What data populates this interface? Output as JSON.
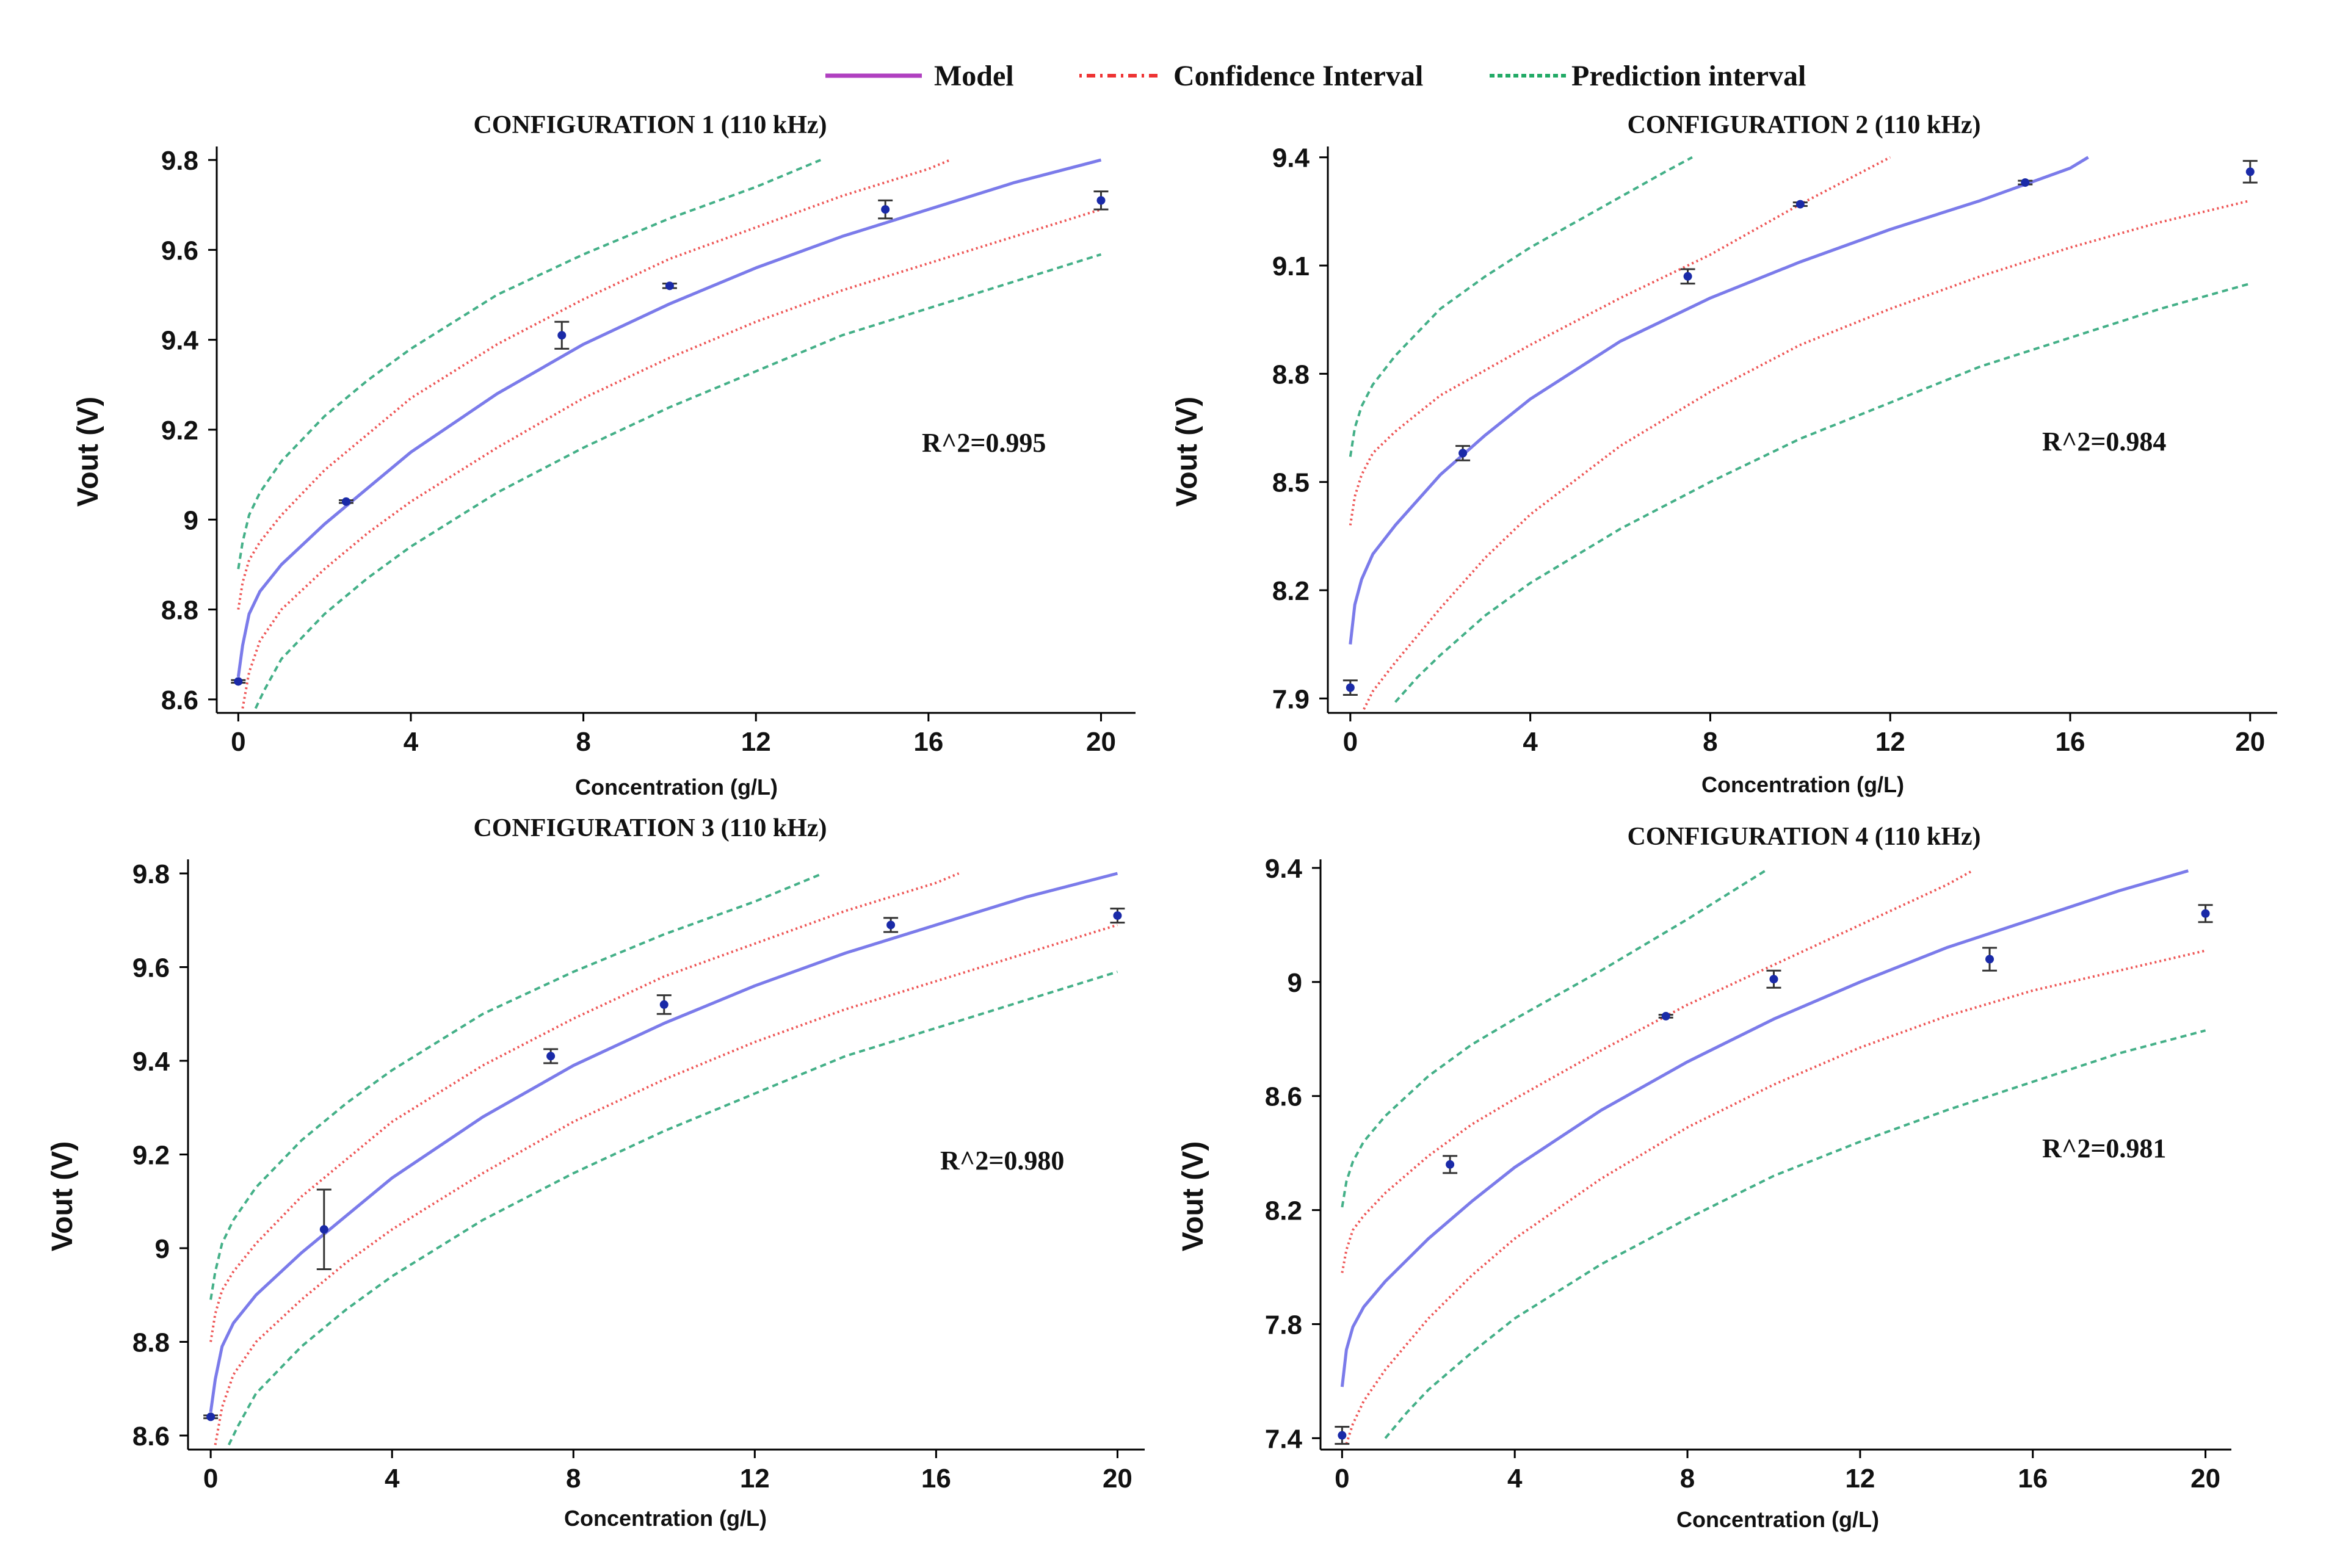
{
  "legend": {
    "items": [
      {
        "label": "Model",
        "color": "#b040c0",
        "style": "solid"
      },
      {
        "label": "Confidence Interval",
        "color": "#ee3333",
        "style": "dotted"
      },
      {
        "label": "Prediction interval",
        "color": "#22aa66",
        "style": "dashed"
      }
    ]
  },
  "colors": {
    "model": "#7b7bea",
    "confidence": "#ee5555",
    "prediction": "#44b088",
    "points": "#1a2aa8",
    "errorbar": "#333333",
    "axis": "#000000"
  },
  "chart_data": [
    {
      "type": "line",
      "title": "CONFIGURATION 1 (110 kHz)",
      "xlabel": "Concentration (g/L)",
      "ylabel": "Vout (V)",
      "xlim": [
        -0.5,
        20.8
      ],
      "ylim": [
        8.57,
        9.83
      ],
      "xticks": [
        0,
        4,
        8,
        12,
        16,
        20
      ],
      "xtick_labels": [
        "0",
        "4",
        "8",
        "12",
        "16",
        "20"
      ],
      "yticks": [
        8.6,
        8.8,
        9.0,
        9.2,
        9.4,
        9.6,
        9.8
      ],
      "ytick_labels": [
        "8.6",
        "8.8",
        "9",
        "9.2",
        "9.4",
        "9.6",
        "9.8"
      ],
      "annotation": "R^2=0.995",
      "series": [
        {
          "name": "Model",
          "x": [
            0,
            0.1,
            0.25,
            0.5,
            1,
            2,
            3,
            4,
            6,
            8,
            10,
            12,
            14,
            16,
            18,
            20
          ],
          "y": [
            8.65,
            8.72,
            8.79,
            8.84,
            8.9,
            8.99,
            9.07,
            9.15,
            9.28,
            9.39,
            9.48,
            9.56,
            9.63,
            9.69,
            9.75,
            9.8
          ]
        },
        {
          "name": "Confidence upper",
          "x": [
            0,
            0.1,
            0.25,
            0.5,
            1,
            2,
            3,
            4,
            6,
            8,
            10,
            12,
            14,
            16,
            16.5
          ],
          "y": [
            8.8,
            8.86,
            8.91,
            8.95,
            9.01,
            9.11,
            9.19,
            9.27,
            9.39,
            9.49,
            9.58,
            9.65,
            9.72,
            9.78,
            9.8
          ]
        },
        {
          "name": "Confidence lower",
          "x": [
            0.1,
            0.25,
            0.5,
            1,
            2,
            3,
            4,
            6,
            8,
            10,
            12,
            14,
            16,
            18,
            20
          ],
          "y": [
            8.58,
            8.66,
            8.73,
            8.8,
            8.89,
            8.97,
            9.04,
            9.16,
            9.27,
            9.36,
            9.44,
            9.51,
            9.57,
            9.63,
            9.69
          ]
        },
        {
          "name": "Prediction upper",
          "x": [
            0,
            0.1,
            0.25,
            0.5,
            1,
            2,
            3,
            4,
            6,
            8,
            10,
            12,
            13.5
          ],
          "y": [
            8.89,
            8.95,
            9.01,
            9.06,
            9.13,
            9.23,
            9.31,
            9.38,
            9.5,
            9.59,
            9.67,
            9.74,
            9.8
          ]
        },
        {
          "name": "Prediction lower",
          "x": [
            0.4,
            0.6,
            1,
            2,
            3,
            4,
            6,
            8,
            10,
            12,
            14,
            16,
            18,
            20
          ],
          "y": [
            8.58,
            8.62,
            8.69,
            8.79,
            8.87,
            8.94,
            9.06,
            9.16,
            9.25,
            9.33,
            9.41,
            9.47,
            9.53,
            9.59
          ]
        }
      ],
      "points": [
        {
          "x": 0,
          "y": 8.64,
          "err": 0.003
        },
        {
          "x": 2.5,
          "y": 9.04,
          "err": 0.003
        },
        {
          "x": 7.5,
          "y": 9.41,
          "err": 0.03
        },
        {
          "x": 10,
          "y": 9.52,
          "err": 0.005
        },
        {
          "x": 15,
          "y": 9.69,
          "err": 0.02
        },
        {
          "x": 20,
          "y": 9.71,
          "err": 0.02
        }
      ]
    },
    {
      "type": "line",
      "title": "CONFIGURATION 2 (110 kHz)",
      "xlabel": "Concentration (g/L)",
      "ylabel": "Vout (V)",
      "xlim": [
        -0.5,
        20.6
      ],
      "ylim": [
        7.86,
        9.43
      ],
      "xticks": [
        0,
        4,
        8,
        12,
        16,
        20
      ],
      "xtick_labels": [
        "0",
        "4",
        "8",
        "12",
        "16",
        "20"
      ],
      "yticks": [
        7.9,
        8.2,
        8.5,
        8.8,
        9.1,
        9.4
      ],
      "ytick_labels": [
        "7.9",
        "8.2",
        "8.5",
        "8.8",
        "9.1",
        "9.4"
      ],
      "annotation": "R^2=0.984",
      "series": [
        {
          "name": "Model",
          "x": [
            0,
            0.1,
            0.25,
            0.5,
            1,
            2,
            3,
            4,
            6,
            8,
            10,
            12,
            14,
            16,
            16.4
          ],
          "y": [
            8.05,
            8.16,
            8.23,
            8.3,
            8.38,
            8.52,
            8.63,
            8.73,
            8.89,
            9.01,
            9.11,
            9.2,
            9.28,
            9.37,
            9.4
          ]
        },
        {
          "name": "Confidence upper",
          "x": [
            0,
            0.1,
            0.25,
            0.5,
            1,
            2,
            3,
            4,
            6,
            8,
            10,
            12
          ],
          "y": [
            8.38,
            8.46,
            8.52,
            8.58,
            8.64,
            8.74,
            8.81,
            8.88,
            9.01,
            9.13,
            9.27,
            9.4
          ]
        },
        {
          "name": "Confidence lower",
          "x": [
            0.3,
            0.5,
            1,
            2,
            3,
            4,
            6,
            8,
            10,
            12,
            14,
            16,
            18,
            20
          ],
          "y": [
            7.87,
            7.92,
            8.0,
            8.15,
            8.29,
            8.41,
            8.6,
            8.75,
            8.88,
            8.98,
            9.07,
            9.15,
            9.22,
            9.28
          ]
        },
        {
          "name": "Prediction upper",
          "x": [
            0,
            0.1,
            0.25,
            0.5,
            1,
            2,
            3,
            4,
            5,
            6,
            7,
            7.6
          ],
          "y": [
            8.57,
            8.65,
            8.71,
            8.77,
            8.85,
            8.98,
            9.07,
            9.15,
            9.22,
            9.29,
            9.36,
            9.4
          ]
        },
        {
          "name": "Prediction lower",
          "x": [
            1,
            1.5,
            2,
            3,
            4,
            6,
            8,
            10,
            12,
            14,
            16,
            18,
            20
          ],
          "y": [
            7.89,
            7.96,
            8.02,
            8.13,
            8.22,
            8.37,
            8.5,
            8.62,
            8.72,
            8.82,
            8.9,
            8.98,
            9.05
          ]
        }
      ],
      "points": [
        {
          "x": 0,
          "y": 7.93,
          "err": 0.02
        },
        {
          "x": 2.5,
          "y": 8.58,
          "err": 0.02
        },
        {
          "x": 7.5,
          "y": 9.07,
          "err": 0.02
        },
        {
          "x": 10,
          "y": 9.27,
          "err": 0.005
        },
        {
          "x": 15,
          "y": 9.33,
          "err": 0.005
        },
        {
          "x": 20,
          "y": 9.36,
          "err": 0.03
        }
      ]
    },
    {
      "type": "line",
      "title": "CONFIGURATION 3 (110 kHz)",
      "xlabel": "Concentration (g/L)",
      "ylabel": "Vout (V)",
      "xlim": [
        -0.5,
        20.6
      ],
      "ylim": [
        8.57,
        9.83
      ],
      "xticks": [
        0,
        4,
        8,
        12,
        16,
        20
      ],
      "xtick_labels": [
        "0",
        "4",
        "8",
        "12",
        "16",
        "20"
      ],
      "yticks": [
        8.6,
        8.8,
        9.0,
        9.2,
        9.4,
        9.6,
        9.8
      ],
      "ytick_labels": [
        "8.6",
        "8.8",
        "9",
        "9.2",
        "9.4",
        "9.6",
        "9.8"
      ],
      "annotation": "R^2=0.980",
      "series": [
        {
          "name": "Model",
          "x": [
            0,
            0.1,
            0.25,
            0.5,
            1,
            2,
            3,
            4,
            6,
            8,
            10,
            12,
            14,
            16,
            18,
            20
          ],
          "y": [
            8.65,
            8.72,
            8.79,
            8.84,
            8.9,
            8.99,
            9.07,
            9.15,
            9.28,
            9.39,
            9.48,
            9.56,
            9.63,
            9.69,
            9.75,
            9.8
          ]
        },
        {
          "name": "Confidence upper",
          "x": [
            0,
            0.1,
            0.25,
            0.5,
            1,
            2,
            3,
            4,
            6,
            8,
            10,
            12,
            14,
            16,
            16.5
          ],
          "y": [
            8.8,
            8.86,
            8.91,
            8.95,
            9.01,
            9.11,
            9.19,
            9.27,
            9.39,
            9.49,
            9.58,
            9.65,
            9.72,
            9.78,
            9.8
          ]
        },
        {
          "name": "Confidence lower",
          "x": [
            0.1,
            0.25,
            0.5,
            1,
            2,
            3,
            4,
            6,
            8,
            10,
            12,
            14,
            16,
            18,
            20
          ],
          "y": [
            8.58,
            8.66,
            8.73,
            8.8,
            8.89,
            8.97,
            9.04,
            9.16,
            9.27,
            9.36,
            9.44,
            9.51,
            9.57,
            9.63,
            9.69
          ]
        },
        {
          "name": "Prediction upper",
          "x": [
            0,
            0.1,
            0.25,
            0.5,
            1,
            2,
            3,
            4,
            6,
            8,
            10,
            12,
            13.5
          ],
          "y": [
            8.89,
            8.95,
            9.01,
            9.06,
            9.13,
            9.23,
            9.31,
            9.38,
            9.5,
            9.59,
            9.67,
            9.74,
            9.8
          ]
        },
        {
          "name": "Prediction lower",
          "x": [
            0.4,
            0.6,
            1,
            2,
            3,
            4,
            6,
            8,
            10,
            12,
            14,
            16,
            18,
            20
          ],
          "y": [
            8.58,
            8.62,
            8.69,
            8.79,
            8.87,
            8.94,
            9.06,
            9.16,
            9.25,
            9.33,
            9.41,
            9.47,
            9.53,
            9.59
          ]
        }
      ],
      "points": [
        {
          "x": 0,
          "y": 8.64,
          "err": 0.003
        },
        {
          "x": 2.5,
          "y": 9.04,
          "err": 0.085
        },
        {
          "x": 7.5,
          "y": 9.41,
          "err": 0.015
        },
        {
          "x": 10,
          "y": 9.52,
          "err": 0.02
        },
        {
          "x": 15,
          "y": 9.69,
          "err": 0.015
        },
        {
          "x": 20,
          "y": 9.71,
          "err": 0.015
        }
      ]
    },
    {
      "type": "line",
      "title": "CONFIGURATION 4 (110 kHz)",
      "xlabel": "Concentration (g/L)",
      "ylabel": "Vout (V)",
      "xlim": [
        -0.5,
        20.6
      ],
      "ylim": [
        7.36,
        9.43
      ],
      "xticks": [
        0,
        4,
        8,
        12,
        16,
        20
      ],
      "xtick_labels": [
        "0",
        "4",
        "8",
        "12",
        "16",
        "20"
      ],
      "yticks": [
        7.4,
        7.8,
        8.2,
        8.6,
        9.0,
        9.4
      ],
      "ytick_labels": [
        "7.4",
        "7.8",
        "8.2",
        "8.6",
        "9",
        "9.4"
      ],
      "annotation": "R^2=0.981",
      "series": [
        {
          "name": "Model",
          "x": [
            0,
            0.1,
            0.25,
            0.5,
            1,
            2,
            3,
            4,
            6,
            8,
            10,
            12,
            14,
            16,
            18,
            19.6
          ],
          "y": [
            7.58,
            7.71,
            7.79,
            7.86,
            7.95,
            8.1,
            8.23,
            8.35,
            8.55,
            8.72,
            8.87,
            9.0,
            9.12,
            9.22,
            9.32,
            9.39
          ]
        },
        {
          "name": "Confidence upper",
          "x": [
            0,
            0.1,
            0.25,
            0.5,
            1,
            2,
            3,
            4,
            6,
            8,
            10,
            12,
            14,
            14.6
          ],
          "y": [
            7.98,
            8.06,
            8.13,
            8.18,
            8.26,
            8.39,
            8.5,
            8.59,
            8.76,
            8.92,
            9.06,
            9.2,
            9.34,
            9.39
          ]
        },
        {
          "name": "Confidence lower",
          "x": [
            0.1,
            0.25,
            0.5,
            1,
            2,
            3,
            4,
            6,
            8,
            10,
            12,
            14,
            16,
            18,
            20
          ],
          "y": [
            7.38,
            7.45,
            7.53,
            7.64,
            7.82,
            7.97,
            8.1,
            8.31,
            8.49,
            8.64,
            8.77,
            8.88,
            8.97,
            9.04,
            9.11
          ]
        },
        {
          "name": "Prediction upper",
          "x": [
            0,
            0.1,
            0.25,
            0.5,
            1,
            2,
            3,
            4,
            6,
            8,
            9.8
          ],
          "y": [
            8.21,
            8.3,
            8.37,
            8.44,
            8.53,
            8.67,
            8.78,
            8.87,
            9.04,
            9.22,
            9.39
          ]
        },
        {
          "name": "Prediction lower",
          "x": [
            1,
            1.5,
            2,
            3,
            4,
            6,
            8,
            10,
            12,
            14,
            16,
            18,
            20
          ],
          "y": [
            7.4,
            7.49,
            7.57,
            7.7,
            7.82,
            8.01,
            8.17,
            8.32,
            8.44,
            8.55,
            8.65,
            8.75,
            8.83
          ]
        }
      ],
      "points": [
        {
          "x": 0,
          "y": 7.41,
          "err": 0.03
        },
        {
          "x": 2.5,
          "y": 8.36,
          "err": 0.03
        },
        {
          "x": 7.5,
          "y": 8.88,
          "err": 0.005
        },
        {
          "x": 10,
          "y": 9.01,
          "err": 0.03
        },
        {
          "x": 15,
          "y": 9.08,
          "err": 0.04
        },
        {
          "x": 20,
          "y": 9.24,
          "err": 0.03
        }
      ]
    }
  ]
}
